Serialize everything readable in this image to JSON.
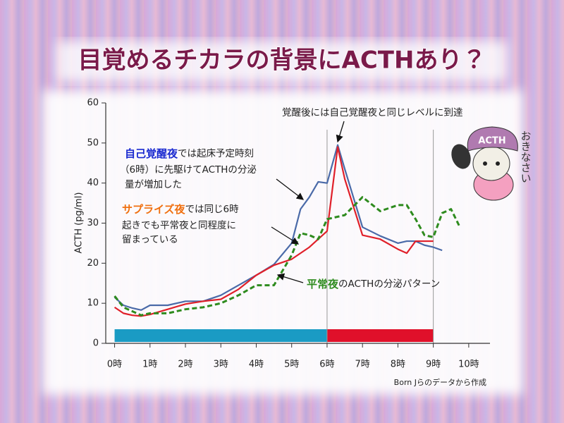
{
  "chart_data": {
    "type": "line",
    "title": "目覚めるチカラの背景にACTHあり？",
    "y_label": "ACTH (pg/ml)",
    "source": "Born Jらのデータから作成",
    "xlim": [
      -0.25,
      10.6
    ],
    "ylim": [
      0,
      60
    ],
    "xticks": [
      {
        "value": 0,
        "label": "0時"
      },
      {
        "value": 1,
        "label": "1時"
      },
      {
        "value": 2,
        "label": "2時"
      },
      {
        "value": 3,
        "label": "3時"
      },
      {
        "value": 4,
        "label": "4時"
      },
      {
        "value": 5,
        "label": "5時"
      },
      {
        "value": 6,
        "label": "6時"
      },
      {
        "value": 7,
        "label": "7時"
      },
      {
        "value": 8,
        "label": "8時"
      },
      {
        "value": 9,
        "label": "9時"
      },
      {
        "value": 10,
        "label": "10時"
      }
    ],
    "yticks": [
      0,
      10,
      20,
      30,
      40,
      50,
      60
    ],
    "vlines": [
      6,
      9
    ],
    "bands": [
      {
        "start": 0,
        "end": 6,
        "color": "#1a9bc4"
      },
      {
        "start": 6,
        "end": 9,
        "color": "#e0102a"
      }
    ],
    "series": [
      {
        "name": "自己覚醒夜",
        "color": "#4a6aa8",
        "style": "solid",
        "x": [
          0,
          0.25,
          0.5,
          0.75,
          1,
          1.5,
          2,
          2.5,
          3,
          3.5,
          4,
          4.5,
          5,
          5.25,
          5.5,
          5.75,
          6,
          6.3,
          6.5,
          7,
          7.5,
          8,
          8.25,
          8.5,
          8.75,
          9,
          9.25
        ],
        "values": [
          11.5,
          9.5,
          8.8,
          8.3,
          9.5,
          9.5,
          10.5,
          10.5,
          12,
          14.5,
          17,
          19.7,
          25,
          33.5,
          36.5,
          40.3,
          40,
          49.5,
          43.5,
          29,
          26.8,
          25,
          25.5,
          25.5,
          24.5,
          24,
          23.2
        ]
      },
      {
        "name": "サプライズ夜",
        "color": "#e0202a",
        "style": "solid",
        "x": [
          0,
          0.25,
          0.5,
          0.75,
          1,
          1.5,
          2,
          2.5,
          3,
          3.5,
          4,
          4.5,
          5,
          5.5,
          6,
          6.3,
          6.5,
          7,
          7.5,
          8,
          8.25,
          8.5,
          8.75,
          9
        ],
        "values": [
          9,
          7.5,
          7,
          6.8,
          7.2,
          8.5,
          9.8,
          10.5,
          11,
          13.5,
          17,
          19.5,
          21,
          24,
          28,
          49,
          41,
          27,
          26,
          23.5,
          22.5,
          25.5,
          25.5,
          25.5
        ]
      },
      {
        "name": "平常夜",
        "color": "#2e8b1e",
        "style": "dashed",
        "x": [
          0,
          0.25,
          0.5,
          0.75,
          1,
          1.5,
          2,
          2.5,
          3,
          3.5,
          4,
          4.5,
          5,
          5.25,
          5.5,
          5.75,
          6,
          6.5,
          7,
          7.5,
          8,
          8.25,
          8.5,
          8.75,
          9,
          9.25,
          9.5,
          9.75
        ],
        "values": [
          11.8,
          9,
          8,
          7,
          7.5,
          7.5,
          8.5,
          9,
          10,
          12,
          14.5,
          14.5,
          22,
          27.5,
          27,
          26,
          31,
          32,
          36.5,
          33,
          34.5,
          34.5,
          31,
          27,
          26.5,
          32.5,
          33.5,
          29
        ]
      }
    ],
    "annotations": [
      {
        "lines": [
          "覚醒後には自己覚醒夜と同じレベルに到達"
        ]
      },
      {
        "lines": [
          "では起床予定時刻",
          "（6時）に先駆けてACTHの分泌",
          "量が増加した"
        ]
      },
      {
        "lines": [
          "では同じ6時",
          "起きでも平常夜と同程度に",
          "留まっている"
        ]
      },
      {
        "lines": [
          "のACTHの分泌パターン"
        ]
      }
    ],
    "mascot": {
      "hat_text": "ACTH",
      "speech": "おきなさい"
    }
  }
}
